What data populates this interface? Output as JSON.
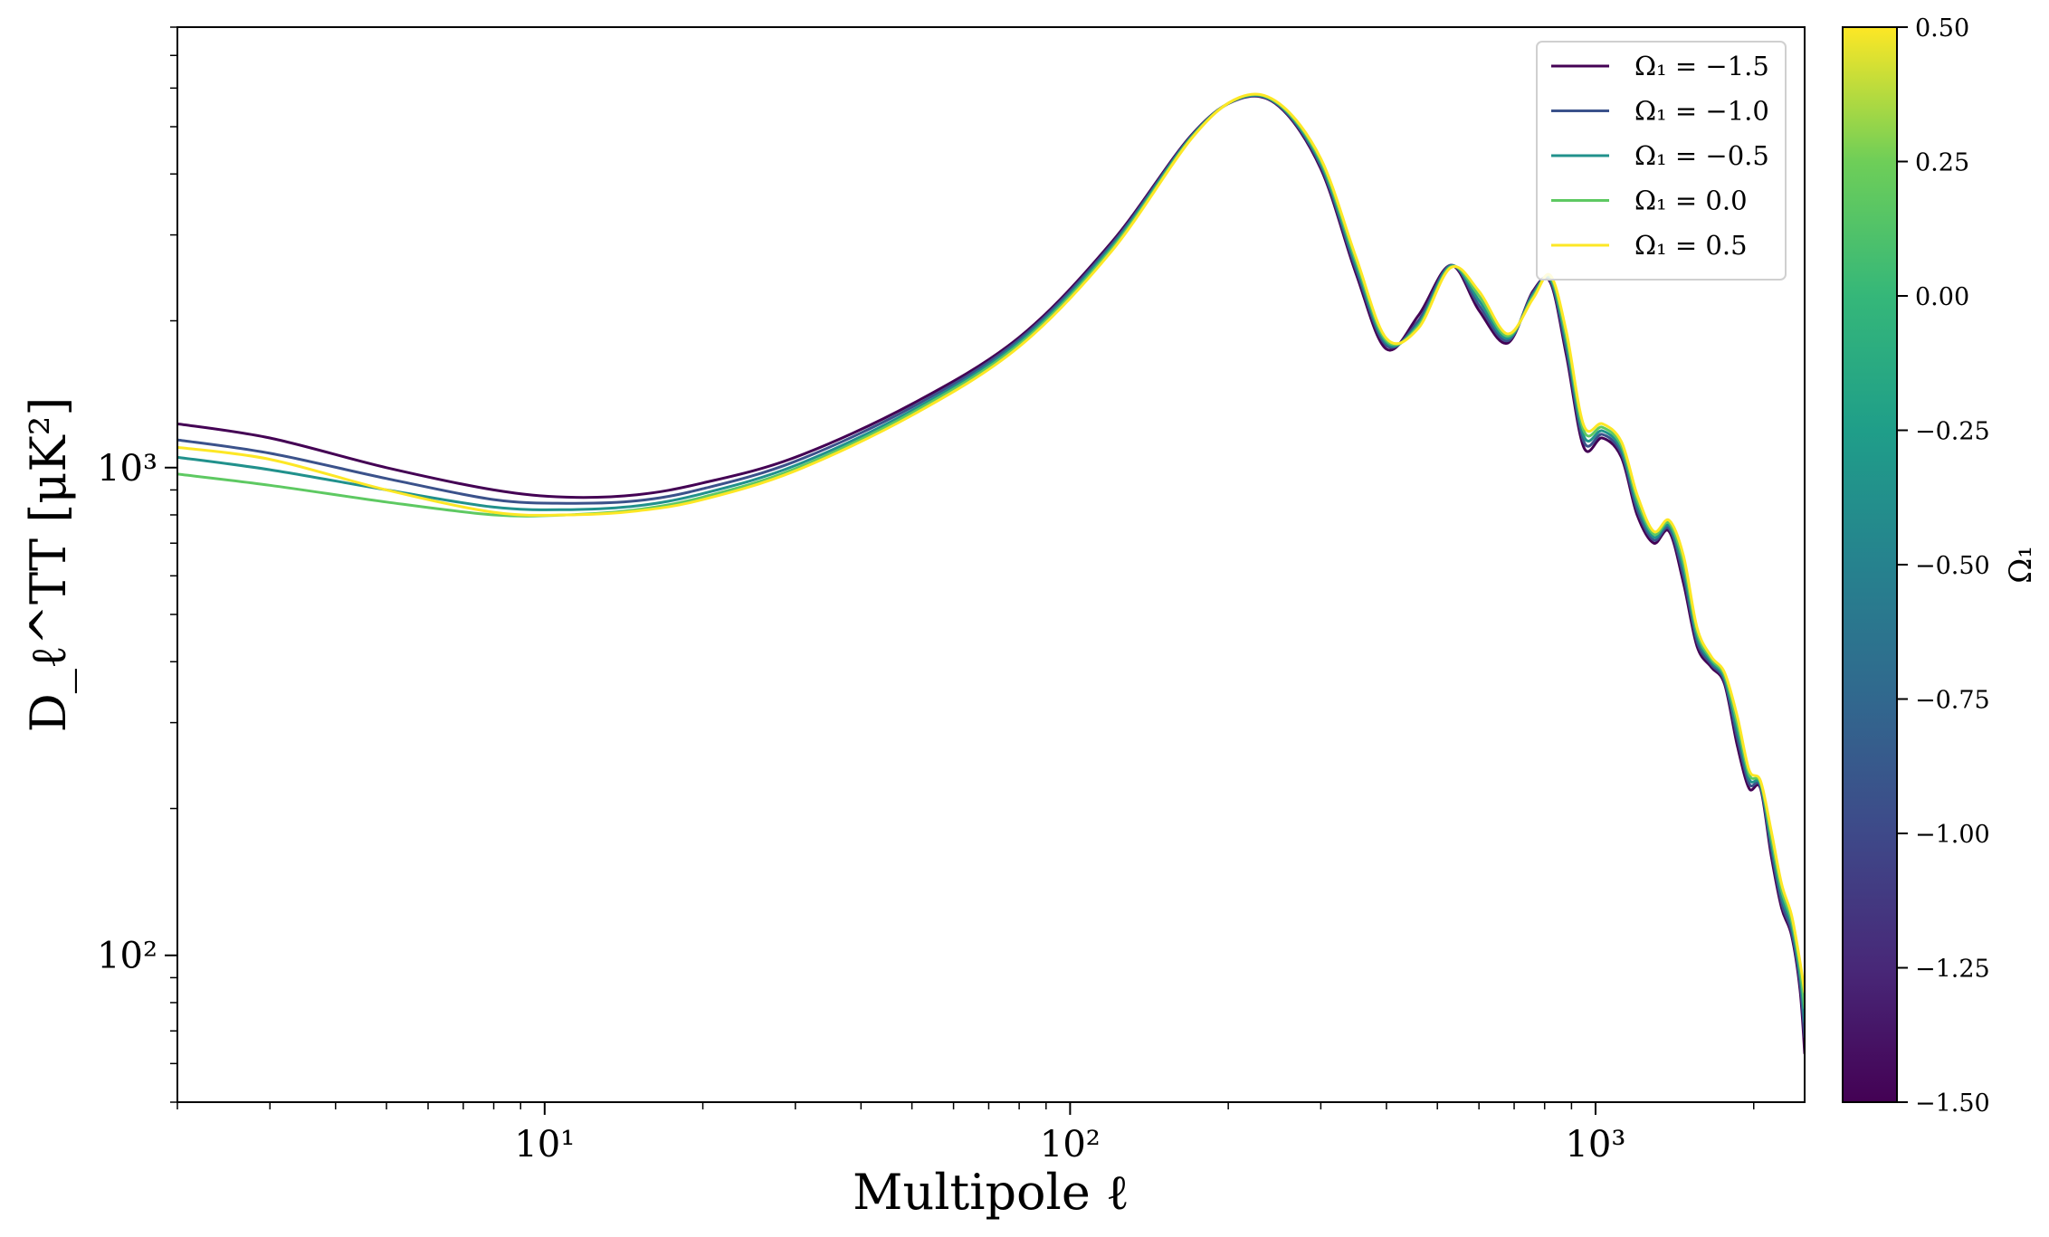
{
  "chart_data": {
    "type": "line",
    "title": "",
    "xlabel": "Multipole ℓ",
    "ylabel": "D_ℓ^TT [μK²]",
    "xscale": "log",
    "yscale": "log",
    "xlim": [
      2,
      2500
    ],
    "ylim": [
      50,
      8000
    ],
    "grid": false,
    "legend_position": "top-right",
    "x_tick_labels": [
      "10¹",
      "10²",
      "10³"
    ],
    "y_tick_labels": [
      "10²",
      "10³"
    ],
    "colorbar": {
      "label": "Ω₁",
      "range": [
        -1.5,
        0.5
      ],
      "tick_labels": [
        "0.50",
        "0.25",
        "0.00",
        "−0.25",
        "−0.50",
        "−0.75",
        "−1.00",
        "−1.25",
        "−1.50"
      ],
      "colormap": "viridis"
    },
    "x": [
      2,
      3,
      5,
      8,
      11,
      15,
      20,
      30,
      50,
      80,
      120,
      170,
      210,
      250,
      300,
      350,
      400,
      460,
      530,
      600,
      680,
      760,
      820,
      880,
      950,
      1030,
      1120,
      1200,
      1290,
      1380,
      1470,
      1560,
      1660,
      1760,
      1860,
      1960,
      2060,
      2160,
      2260,
      2360,
      2450,
      2500
    ],
    "series": [
      {
        "name": "Ω₁ = −1.5",
        "omega": -1.5,
        "color": "#440154",
        "values": [
          1230,
          1150,
          1000,
          900,
          870,
          880,
          930,
          1050,
          1350,
          1850,
          2900,
          4800,
          5700,
          5500,
          4100,
          2500,
          1750,
          2050,
          2600,
          2100,
          1800,
          2300,
          2400,
          1700,
          1100,
          1150,
          1050,
          800,
          700,
          740,
          580,
          430,
          390,
          360,
          270,
          220,
          220,
          160,
          125,
          110,
          85,
          63
        ]
      },
      {
        "name": "Ω₁ = −1.0",
        "omega": -1.0,
        "color": "#3b528b",
        "values": [
          1140,
          1070,
          950,
          860,
          845,
          855,
          905,
          1030,
          1330,
          1830,
          2870,
          4780,
          5710,
          5520,
          4150,
          2550,
          1780,
          2000,
          2600,
          2150,
          1820,
          2280,
          2420,
          1750,
          1130,
          1170,
          1070,
          820,
          710,
          750,
          600,
          440,
          395,
          365,
          280,
          225,
          222,
          165,
          128,
          112,
          88,
          68
        ]
      },
      {
        "name": "Ω₁ = −0.5",
        "omega": -0.5,
        "color": "#21918c",
        "values": [
          1050,
          990,
          900,
          830,
          820,
          835,
          885,
          1010,
          1310,
          1810,
          2840,
          4760,
          5720,
          5540,
          4200,
          2600,
          1800,
          1970,
          2590,
          2200,
          1840,
          2260,
          2440,
          1800,
          1160,
          1190,
          1090,
          840,
          720,
          760,
          620,
          450,
          400,
          370,
          290,
          230,
          224,
          170,
          132,
          115,
          91,
          73
        ]
      },
      {
        "name": "Ω₁ = 0.0",
        "omega": 0.0,
        "color": "#5ec962",
        "values": [
          970,
          920,
          850,
          800,
          800,
          820,
          870,
          995,
          1295,
          1790,
          2810,
          4740,
          5730,
          5560,
          4250,
          2650,
          1820,
          1950,
          2580,
          2250,
          1860,
          2240,
          2460,
          1850,
          1190,
          1210,
          1110,
          860,
          730,
          770,
          640,
          460,
          405,
          375,
          300,
          235,
          226,
          175,
          136,
          118,
          94,
          78
        ]
      },
      {
        "name": "Ω₁ = 0.5",
        "omega": 0.5,
        "color": "#fde725",
        "values": [
          1100,
          1040,
          900,
          810,
          800,
          815,
          860,
          985,
          1280,
          1770,
          2780,
          4720,
          5740,
          5580,
          4300,
          2700,
          1840,
          1930,
          2570,
          2300,
          1880,
          2220,
          2480,
          1900,
          1220,
          1230,
          1130,
          880,
          740,
          780,
          660,
          470,
          410,
          380,
          310,
          240,
          228,
          180,
          140,
          121,
          97,
          84
        ]
      }
    ]
  }
}
